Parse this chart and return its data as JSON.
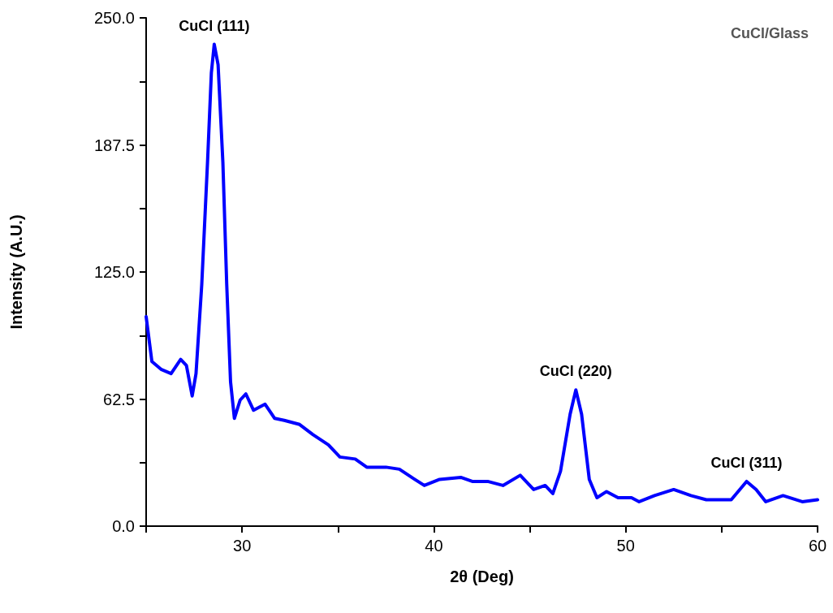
{
  "chart_data": {
    "type": "line",
    "xlabel": "2θ (Deg)",
    "ylabel": "Intensity (A.U.)",
    "annotations": [
      {
        "text": "CuCl (111)",
        "x": 28.55,
        "y": 237
      },
      {
        "text": "CuCl (220)",
        "x": 47.4,
        "y": 67
      },
      {
        "text": "CuCl (311)",
        "x": 56.3,
        "y": 22
      },
      "CuCl/Glass"
    ],
    "x": [
      25,
      25.3,
      25.8,
      26.3,
      26.8,
      27.1,
      27.4,
      27.6,
      27.9,
      28.2,
      28.4,
      28.55,
      28.75,
      29.0,
      29.2,
      29.4,
      29.6,
      29.9,
      30.2,
      30.6,
      31.2,
      31.7,
      32.2,
      33.0,
      33.7,
      34.5,
      35.1,
      35.9,
      36.5,
      37.5,
      38.2,
      39.0,
      39.5,
      40.3,
      41.4,
      42.0,
      42.8,
      43.6,
      44.5,
      45.2,
      45.8,
      46.2,
      46.6,
      47.1,
      47.4,
      47.7,
      48.1,
      48.5,
      49.0,
      49.6,
      50.3,
      50.7,
      51.5,
      52.5,
      53.4,
      54.2,
      55.5,
      56.3,
      56.8,
      57.3,
      58.2,
      59.2,
      60
    ],
    "series": [
      {
        "color": "#0000ff",
        "values": [
          103,
          81,
          77,
          75,
          82,
          79,
          64,
          75,
          119,
          179,
          223,
          237,
          227,
          179,
          119,
          71,
          53,
          62,
          65,
          57,
          60,
          53,
          52,
          50,
          45,
          40,
          34,
          33,
          29,
          29,
          28,
          23,
          20,
          23,
          24,
          22,
          22,
          20,
          25,
          18,
          20,
          16,
          27,
          55,
          67,
          55,
          23,
          14,
          17,
          14,
          14,
          12,
          15,
          18,
          15,
          13,
          13,
          22,
          18,
          12,
          15,
          12,
          13
        ]
      }
    ],
    "xlim": [
      25,
      60
    ],
    "xticks": [
      {
        "value": 25,
        "label": null
      },
      30,
      {
        "value": 35,
        "label": null
      },
      40,
      {
        "value": 45,
        "label": null
      },
      50,
      {
        "value": 55,
        "label": null
      },
      60
    ],
    "ylim": [
      0,
      250
    ],
    "yticks": [
      {
        "value": 0,
        "label": "0.0"
      },
      {
        "value": 31.25,
        "label": null
      },
      {
        "value": 62.5,
        "label": "62.5"
      },
      {
        "value": 93.75,
        "label": null
      },
      {
        "value": 125,
        "label": "125.0"
      },
      {
        "value": 156.25,
        "label": null
      },
      {
        "value": 187.5,
        "label": "187.5"
      },
      {
        "value": 218.75,
        "label": null
      },
      {
        "value": 250,
        "label": "250.0"
      }
    ],
    "grid": false,
    "marker": "none",
    "line_style": "solid"
  }
}
